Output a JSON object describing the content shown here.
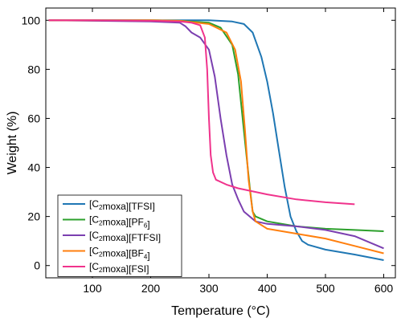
{
  "chart_data": {
    "type": "line",
    "title": "",
    "xlabel": "Temperature (°C)",
    "ylabel": "Weight (%)",
    "xlim": [
      20,
      620
    ],
    "ylim": [
      -5,
      105
    ],
    "xticks": [
      100,
      200,
      300,
      400,
      500,
      600
    ],
    "yticks": [
      0,
      20,
      40,
      60,
      80,
      100
    ],
    "grid": false,
    "legend_position": "bottom-left",
    "series": [
      {
        "name": "[C2moxa][TFSI]",
        "legend": {
          "pre": "[C",
          "sub": "2",
          "post": "moxa][TFSI]"
        },
        "color": "#1f77b4",
        "x": [
          25,
          100,
          200,
          300,
          340,
          360,
          375,
          390,
          400,
          410,
          420,
          430,
          440,
          450,
          460,
          470,
          500,
          550,
          600
        ],
        "y": [
          100,
          100,
          100,
          100,
          99.5,
          98.5,
          95,
          85,
          75,
          62,
          47,
          32,
          20,
          14,
          10,
          8.5,
          6.5,
          4.5,
          2.2
        ]
      },
      {
        "name": "[C2moxa][PF6]",
        "legend": {
          "pre": "[C",
          "sub": "2",
          "post": "moxa][PF",
          "sub2": "6",
          "post2": "]"
        },
        "color": "#2ca02c",
        "x": [
          25,
          100,
          200,
          250,
          300,
          320,
          340,
          350,
          360,
          370,
          375,
          380,
          400,
          450,
          500,
          550,
          600
        ],
        "y": [
          100,
          100,
          100,
          99.8,
          99,
          97,
          90,
          78,
          55,
          32,
          22,
          20,
          18,
          16,
          15,
          14.5,
          14
        ]
      },
      {
        "name": "[C2moxa][FTFSI]",
        "legend": {
          "pre": "[C",
          "sub": "2",
          "post": "moxa][FTFSI]"
        },
        "color": "#7b3fb0",
        "x": [
          25,
          100,
          200,
          250,
          260,
          270,
          285,
          300,
          310,
          320,
          330,
          340,
          350,
          360,
          380,
          400,
          450,
          500,
          550,
          600
        ],
        "y": [
          100,
          99.8,
          99.5,
          99,
          97.5,
          95,
          93,
          88,
          77,
          60,
          45,
          33,
          27,
          22,
          18,
          17,
          16,
          14.5,
          12,
          7
        ]
      },
      {
        "name": "[C2moxa][BF4]",
        "legend": {
          "pre": "[C",
          "sub": "2",
          "post": "moxa][BF",
          "sub2": "4",
          "post2": "]"
        },
        "color": "#ff7f0e",
        "x": [
          25,
          100,
          200,
          250,
          300,
          330,
          345,
          355,
          362,
          368,
          375,
          380,
          400,
          450,
          500,
          550,
          600
        ],
        "y": [
          100,
          100,
          100,
          99.8,
          98.5,
          95,
          88,
          75,
          55,
          35,
          22,
          18,
          15,
          13,
          11,
          8,
          5
        ]
      },
      {
        "name": "[C2moxa][FSI]",
        "legend": {
          "pre": "[C",
          "sub": "2",
          "post": "moxa][FSI]"
        },
        "color": "#f0338c",
        "x": [
          25,
          100,
          200,
          250,
          270,
          285,
          293,
          297,
          300,
          303,
          307,
          312,
          330,
          350,
          400,
          450,
          500,
          550
        ],
        "y": [
          100,
          100,
          99.8,
          99.5,
          99,
          98,
          93,
          80,
          60,
          45,
          38,
          35,
          33,
          31.5,
          29,
          27,
          25.8,
          25
        ]
      }
    ]
  }
}
